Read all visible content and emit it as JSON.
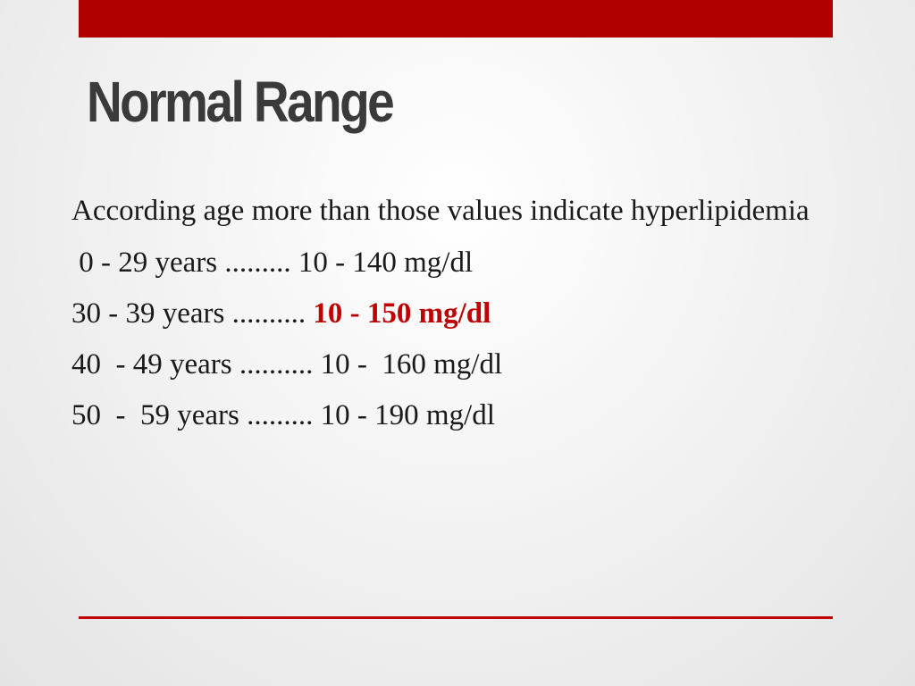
{
  "slide": {
    "title": "Normal Range",
    "intro": "According age more than those values indicate hyperlipidemia",
    "rows": [
      {
        "age": " 0 - 29 years ......... ",
        "value": "10 - 140 mg/dl"
      },
      {
        "age": "30 - 39 years .......... ",
        "value": "10 - 150 mg/dl"
      },
      {
        "age": "40  - 49 years .......... ",
        "value": "10 -  160 mg/dl"
      },
      {
        "age": "50  -  59 years ......... ",
        "value": "10 - 190 mg/dl"
      }
    ]
  },
  "colors": {
    "accent": "#b00000",
    "highlight_text": "#c00000",
    "title_text": "#3a3a3a",
    "body_text": "#1a1a1a"
  }
}
